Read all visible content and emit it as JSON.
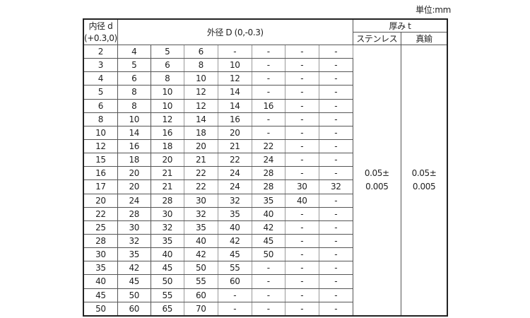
{
  "unit_label": "単位:mm",
  "header": {
    "inner": "内径 d",
    "inner_tol": "(+0.3,0)",
    "outer": "外径 D (0,-0.3)",
    "thickness": "厚み t",
    "stainless": "ステンレス",
    "brass": "真鍮"
  },
  "thickness_value": {
    "line1": "0.05±",
    "line2": "0.005"
  },
  "rows": [
    [
      "2",
      "4",
      "5",
      "6",
      "-",
      "-",
      "-",
      "-"
    ],
    [
      "3",
      "5",
      "6",
      "8",
      "10",
      "-",
      "-",
      "-"
    ],
    [
      "4",
      "6",
      "8",
      "10",
      "12",
      "-",
      "-",
      "-"
    ],
    [
      "5",
      "8",
      "10",
      "12",
      "14",
      "-",
      "-",
      "-"
    ],
    [
      "6",
      "8",
      "10",
      "12",
      "14",
      "16",
      "-",
      "-"
    ],
    [
      "8",
      "10",
      "12",
      "14",
      "16",
      "-",
      "-",
      "-"
    ],
    [
      "10",
      "14",
      "16",
      "18",
      "20",
      "-",
      "-",
      "-"
    ],
    [
      "12",
      "16",
      "18",
      "20",
      "21",
      "22",
      "-",
      "-"
    ],
    [
      "15",
      "18",
      "20",
      "21",
      "22",
      "24",
      "-",
      "-"
    ],
    [
      "16",
      "20",
      "21",
      "22",
      "24",
      "28",
      "-",
      "-"
    ],
    [
      "17",
      "20",
      "21",
      "22",
      "24",
      "28",
      "30",
      "32"
    ],
    [
      "20",
      "24",
      "28",
      "30",
      "32",
      "35",
      "40",
      "-"
    ],
    [
      "22",
      "28",
      "30",
      "32",
      "35",
      "40",
      "-",
      "-"
    ],
    [
      "25",
      "30",
      "32",
      "35",
      "40",
      "42",
      "-",
      "-"
    ],
    [
      "28",
      "32",
      "35",
      "40",
      "42",
      "45",
      "-",
      "-"
    ],
    [
      "30",
      "35",
      "40",
      "42",
      "45",
      "50",
      "-",
      "-"
    ],
    [
      "35",
      "42",
      "45",
      "50",
      "55",
      "-",
      "-",
      "-"
    ],
    [
      "40",
      "45",
      "50",
      "55",
      "60",
      "-",
      "-",
      "-"
    ],
    [
      "45",
      "50",
      "55",
      "60",
      "-",
      "-",
      "-",
      "-"
    ],
    [
      "50",
      "60",
      "65",
      "70",
      "-",
      "-",
      "-",
      "-"
    ]
  ]
}
